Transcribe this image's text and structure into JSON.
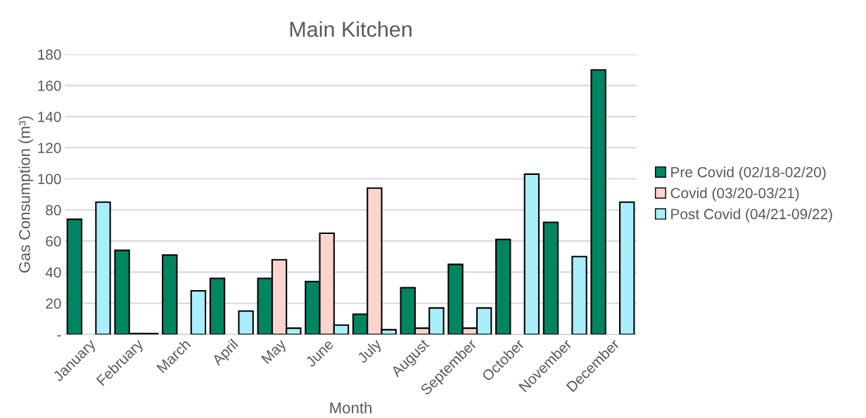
{
  "chart_data": {
    "type": "bar",
    "title": "Main Kitchen",
    "xlabel": "Month",
    "ylabel": "Gas Consumption (m³)",
    "categories": [
      "January",
      "February",
      "March",
      "April",
      "May",
      "June",
      "July",
      "August",
      "September",
      "October",
      "November",
      "December"
    ],
    "series": [
      {
        "name": "Pre Covid (02/18-02/20)",
        "color": "#008562",
        "values": [
          74,
          54,
          51,
          36,
          36,
          34,
          13,
          30,
          45,
          61,
          72,
          170
        ]
      },
      {
        "name": "Covid (03/20-03/21)",
        "color": "#fbd4cf",
        "values": [
          null,
          0.5,
          null,
          null,
          48,
          65,
          94,
          4,
          4,
          null,
          null,
          null
        ]
      },
      {
        "name": "Post Covid (04/21-09/22)",
        "color": "#a8eefb",
        "values": [
          85,
          0.5,
          28,
          15,
          4,
          6,
          3,
          17,
          17,
          103,
          50,
          85
        ]
      }
    ],
    "ylim": [
      0,
      180
    ],
    "yticks": [
      {
        "value": 0,
        "label": "-"
      },
      20,
      40,
      60,
      80,
      100,
      120,
      140,
      160,
      180
    ],
    "grid": "y",
    "legend": "right"
  }
}
